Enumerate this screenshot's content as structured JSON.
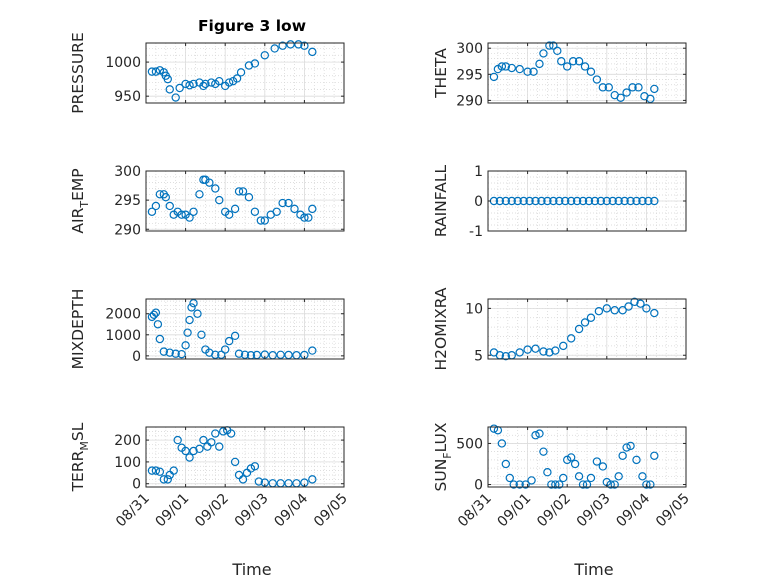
{
  "figure": {
    "title": "Figure 3 low",
    "marker_color": "#0072BD",
    "axis_color": "#262626",
    "grid": true,
    "minor_grid": true,
    "x_tick_labels": [
      "08/31",
      "09/01",
      "09/02",
      "09/03",
      "09/04",
      "09/05"
    ],
    "x_label": "Time"
  },
  "chart_data": [
    {
      "type": "scatter",
      "ylabel": "PRESSURE",
      "ylabel_parts": [
        "PRESSURE"
      ],
      "xlim": [
        0,
        5
      ],
      "ylim": [
        940,
        1028
      ],
      "yticks": [
        950,
        1000
      ],
      "ytick_labels": [
        "950",
        "1000"
      ],
      "x": [
        0.15,
        0.25,
        0.35,
        0.45,
        0.5,
        0.55,
        0.6,
        0.75,
        0.85,
        1.0,
        1.1,
        1.2,
        1.35,
        1.45,
        1.5,
        1.65,
        1.75,
        1.85,
        2.0,
        2.1,
        2.2,
        2.3,
        2.4,
        2.6,
        2.75,
        3.0,
        3.25,
        3.45,
        3.65,
        3.85,
        4.0,
        4.2
      ],
      "y": [
        986,
        986,
        988,
        985,
        980,
        975,
        960,
        948,
        962,
        968,
        966,
        968,
        970,
        965,
        968,
        970,
        968,
        972,
        965,
        970,
        972,
        976,
        985,
        995,
        998,
        1010,
        1020,
        1024,
        1026,
        1026,
        1024,
        1015
      ]
    },
    {
      "type": "scatter",
      "ylabel": "THETA",
      "ylabel_parts": [
        "THETA"
      ],
      "xlim": [
        0,
        5
      ],
      "ylim": [
        289.5,
        301
      ],
      "yticks": [
        290,
        295,
        300
      ],
      "ytick_labels": [
        "290",
        "295",
        "300"
      ],
      "x": [
        0.15,
        0.25,
        0.35,
        0.45,
        0.6,
        0.8,
        1.0,
        1.15,
        1.3,
        1.4,
        1.55,
        1.65,
        1.75,
        1.85,
        2.0,
        2.15,
        2.3,
        2.45,
        2.6,
        2.75,
        2.9,
        3.05,
        3.2,
        3.35,
        3.5,
        3.65,
        3.8,
        3.95,
        4.1,
        4.2
      ],
      "y": [
        294.5,
        296,
        296.5,
        296.5,
        296.2,
        296.0,
        295.5,
        295.5,
        297,
        299,
        300.5,
        300.5,
        299.5,
        297.5,
        296.5,
        297.5,
        297.5,
        296.5,
        295.5,
        294,
        292.5,
        292.5,
        291,
        290.5,
        291.5,
        292.5,
        292.5,
        290.8,
        290.3,
        292.2
      ]
    },
    {
      "type": "scatter",
      "ylabel": "AIR_TEMP",
      "ylabel_parts": [
        "AIR",
        "T",
        "EMP"
      ],
      "xlim": [
        0,
        5
      ],
      "ylim": [
        289.7,
        300
      ],
      "yticks": [
        290,
        295,
        300
      ],
      "ytick_labels": [
        "290",
        "295",
        "300"
      ],
      "x": [
        0.15,
        0.25,
        0.35,
        0.45,
        0.5,
        0.6,
        0.7,
        0.8,
        0.9,
        1.0,
        1.1,
        1.2,
        1.35,
        1.45,
        1.5,
        1.6,
        1.75,
        1.85,
        2.0,
        2.1,
        2.25,
        2.35,
        2.45,
        2.6,
        2.75,
        2.9,
        3.0,
        3.15,
        3.3,
        3.45,
        3.6,
        3.75,
        3.9,
        4.0,
        4.1,
        4.2
      ],
      "y": [
        293,
        294,
        296,
        296,
        295.5,
        294,
        292.5,
        293,
        292.5,
        292.5,
        292,
        293,
        296,
        298.5,
        298.5,
        298,
        297,
        295,
        293,
        292.5,
        293.5,
        296.5,
        296.5,
        295.5,
        293,
        291.5,
        291.5,
        292.5,
        293,
        294.5,
        294.5,
        293.5,
        292.5,
        292,
        292,
        293.5
      ]
    },
    {
      "type": "scatter",
      "ylabel": "RAINFALL",
      "ylabel_parts": [
        "RAINFALL"
      ],
      "xlim": [
        0,
        5
      ],
      "ylim": [
        -1,
        1
      ],
      "yticks": [
        -1,
        0,
        1
      ],
      "ytick_labels": [
        "-1",
        "0",
        "1"
      ],
      "x": [
        0.15,
        0.3,
        0.45,
        0.6,
        0.75,
        0.9,
        1.05,
        1.2,
        1.35,
        1.5,
        1.65,
        1.8,
        1.95,
        2.1,
        2.25,
        2.4,
        2.55,
        2.7,
        2.85,
        3.0,
        3.15,
        3.3,
        3.45,
        3.6,
        3.75,
        3.9,
        4.05,
        4.2
      ],
      "y": [
        0,
        0,
        0,
        0,
        0,
        0,
        0,
        0,
        0,
        0,
        0,
        0,
        0,
        0,
        0,
        0,
        0,
        0,
        0,
        0,
        0,
        0,
        0,
        0,
        0,
        0,
        0,
        0
      ]
    },
    {
      "type": "scatter",
      "ylabel": "MIXDEPTH",
      "ylabel_parts": [
        "MIXDEPTH"
      ],
      "xlim": [
        0,
        5
      ],
      "ylim": [
        -150,
        2700
      ],
      "yticks": [
        0,
        1000,
        2000
      ],
      "ytick_labels": [
        "0",
        "1000",
        "2000"
      ],
      "x": [
        0.15,
        0.2,
        0.25,
        0.3,
        0.35,
        0.45,
        0.6,
        0.75,
        0.9,
        1.0,
        1.05,
        1.1,
        1.15,
        1.2,
        1.3,
        1.4,
        1.5,
        1.6,
        1.75,
        1.9,
        2.0,
        2.1,
        2.25,
        2.35,
        2.5,
        2.65,
        2.8,
        3.0,
        3.2,
        3.4,
        3.6,
        3.8,
        4.0,
        4.2
      ],
      "y": [
        1850,
        1950,
        2050,
        1500,
        800,
        200,
        150,
        100,
        80,
        500,
        1100,
        1700,
        2300,
        2500,
        2000,
        1000,
        300,
        150,
        50,
        50,
        300,
        700,
        950,
        100,
        50,
        30,
        40,
        60,
        30,
        50,
        40,
        30,
        40,
        250
      ]
    },
    {
      "type": "scatter",
      "ylabel": "H2OMIXRA",
      "ylabel_parts": [
        "H2OMIXRA"
      ],
      "xlim": [
        0,
        5
      ],
      "ylim": [
        4.6,
        11
      ],
      "yticks": [
        5,
        10
      ],
      "ytick_labels": [
        "5",
        "10"
      ],
      "x": [
        0.15,
        0.3,
        0.45,
        0.6,
        0.8,
        1.0,
        1.2,
        1.4,
        1.55,
        1.7,
        1.9,
        2.1,
        2.3,
        2.45,
        2.6,
        2.8,
        3.0,
        3.2,
        3.4,
        3.55,
        3.7,
        3.85,
        4.0,
        4.2
      ],
      "y": [
        5.3,
        5.0,
        4.9,
        5.0,
        5.3,
        5.6,
        5.7,
        5.4,
        5.3,
        5.5,
        6.0,
        6.8,
        7.8,
        8.5,
        9.0,
        9.7,
        10.0,
        9.8,
        9.8,
        10.2,
        10.7,
        10.5,
        10.0,
        9.5
      ]
    },
    {
      "type": "scatter",
      "ylabel": "TERR_MSL",
      "ylabel_parts": [
        "TERR",
        "M",
        "SL"
      ],
      "xlim": [
        0,
        5
      ],
      "ylim": [
        -15,
        260
      ],
      "yticks": [
        0,
        100,
        200
      ],
      "ytick_labels": [
        "0",
        "100",
        "200"
      ],
      "x": [
        0.15,
        0.25,
        0.35,
        0.45,
        0.55,
        0.6,
        0.7,
        0.8,
        0.9,
        1.0,
        1.1,
        1.2,
        1.35,
        1.45,
        1.55,
        1.65,
        1.75,
        1.85,
        1.95,
        2.05,
        2.15,
        2.25,
        2.35,
        2.45,
        2.55,
        2.65,
        2.75,
        2.85,
        3.0,
        3.2,
        3.4,
        3.6,
        3.8,
        4.0,
        4.2
      ],
      "y": [
        60,
        60,
        55,
        20,
        20,
        40,
        60,
        200,
        165,
        150,
        120,
        150,
        160,
        200,
        170,
        190,
        230,
        170,
        240,
        245,
        230,
        100,
        40,
        20,
        50,
        70,
        80,
        10,
        5,
        2,
        2,
        2,
        2,
        5,
        20
      ]
    },
    {
      "type": "scatter",
      "ylabel": "SUN_FLUX",
      "ylabel_parts": [
        "SUN",
        "F",
        "LUX"
      ],
      "xlim": [
        0,
        5
      ],
      "ylim": [
        -30,
        700
      ],
      "yticks": [
        0,
        500
      ],
      "ytick_labels": [
        "0",
        "500"
      ],
      "x": [
        0.15,
        0.25,
        0.35,
        0.45,
        0.55,
        0.65,
        0.8,
        0.95,
        1.1,
        1.2,
        1.3,
        1.4,
        1.5,
        1.6,
        1.7,
        1.8,
        1.9,
        2.0,
        2.1,
        2.2,
        2.3,
        2.4,
        2.5,
        2.6,
        2.75,
        2.9,
        3.0,
        3.1,
        3.2,
        3.3,
        3.4,
        3.5,
        3.6,
        3.75,
        3.9,
        4.0,
        4.1,
        4.2
      ],
      "y": [
        680,
        660,
        500,
        250,
        80,
        0,
        0,
        0,
        50,
        600,
        620,
        400,
        150,
        0,
        0,
        0,
        80,
        300,
        330,
        250,
        100,
        0,
        0,
        80,
        280,
        220,
        30,
        0,
        0,
        100,
        350,
        450,
        470,
        300,
        100,
        0,
        0,
        350
      ]
    }
  ]
}
